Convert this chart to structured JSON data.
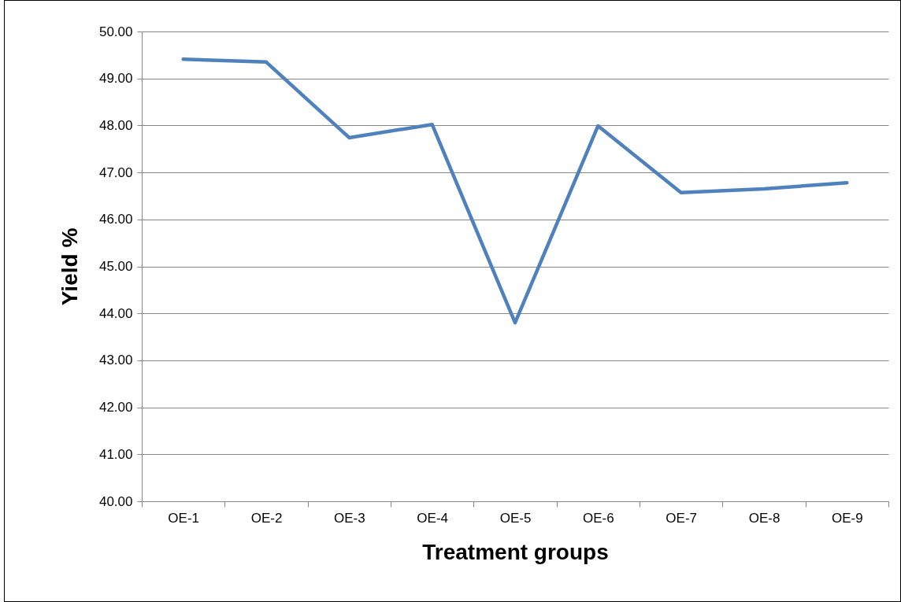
{
  "chart_data": {
    "type": "line",
    "xlabel": "Treatment groups",
    "ylabel": "Yield %",
    "categories": [
      "OE-1",
      "OE-2",
      "OE-3",
      "OE-4",
      "OE-5",
      "OE-6",
      "OE-7",
      "OE-8",
      "OE-9"
    ],
    "series": [
      {
        "color": "#4f81bd",
        "values": [
          49.41,
          49.35,
          47.74,
          48.02,
          43.8,
          47.99,
          46.57,
          46.65,
          46.78
        ]
      }
    ],
    "ylim": [
      40,
      50
    ],
    "yticks": [
      {
        "value": 40,
        "label": "40.00"
      },
      {
        "value": 41,
        "label": "41.00"
      },
      {
        "value": 42,
        "label": "42.00"
      },
      {
        "value": 43,
        "label": "43.00"
      },
      {
        "value": 44,
        "label": "44.00"
      },
      {
        "value": 45,
        "label": "45.00"
      },
      {
        "value": 46,
        "label": "46.00"
      },
      {
        "value": 47,
        "label": "47.00"
      },
      {
        "value": 48,
        "label": "48.00"
      },
      {
        "value": 49,
        "label": "49.00"
      },
      {
        "value": 50,
        "label": "50.00"
      }
    ],
    "grid": "y",
    "marker": "none",
    "line_style": "solid"
  }
}
